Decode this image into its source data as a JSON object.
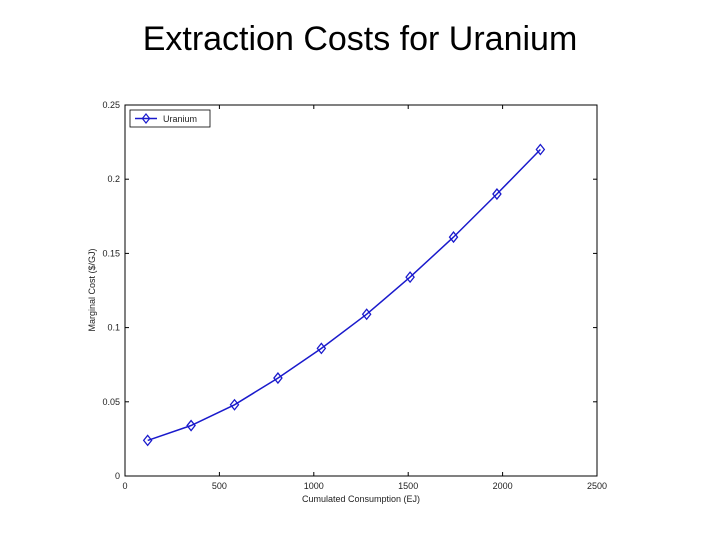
{
  "slide": {
    "title": "Extraction Costs for Uranium"
  },
  "chart_data": {
    "type": "line",
    "title": "",
    "xlabel": "Cumulated Consumption (EJ)",
    "ylabel": "Marginal Cost ($/GJ)",
    "xlim": [
      0,
      2500
    ],
    "ylim": [
      0,
      0.25
    ],
    "xticks": [
      0,
      500,
      1000,
      1500,
      2000,
      2500
    ],
    "xtick_labels": [
      "0",
      "500",
      "1000",
      "1500",
      "2000",
      "2500"
    ],
    "yticks": [
      0,
      0.05,
      0.1,
      0.15,
      0.2,
      0.25
    ],
    "ytick_labels": [
      "0",
      "0.05",
      "0.1",
      "0.15",
      "0.2",
      "0.25"
    ],
    "grid": false,
    "legend_position": "top-left",
    "series": [
      {
        "name": "Uranium",
        "color": "#1a1acc",
        "marker": "diamond",
        "x": [
          120,
          350,
          580,
          810,
          1040,
          1280,
          1510,
          1740,
          1970,
          2200
        ],
        "y": [
          0.024,
          0.034,
          0.048,
          0.066,
          0.086,
          0.109,
          0.134,
          0.161,
          0.19,
          0.22
        ]
      }
    ]
  }
}
